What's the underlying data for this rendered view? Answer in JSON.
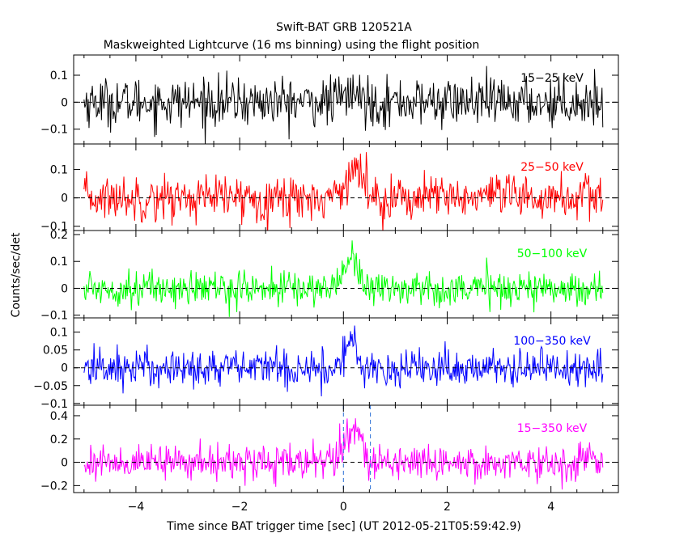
{
  "chart_data": {
    "type": "line",
    "title": "Swift-BAT GRB 120521A",
    "subtitle": "Maskweighted Lightcurve (16 ms binning) using the flight position",
    "xlabel": "Time since BAT trigger time [sec] (UT 2012-05-21T05:59:42.9)",
    "ylabel": "Counts/sec/det",
    "xlim": [
      -5.2,
      5.3
    ],
    "x_ticks": [
      -4,
      -2,
      0,
      2,
      4
    ],
    "x_tick_labels": [
      "−4",
      "−2",
      "0",
      "2",
      "4"
    ],
    "bin_width_sec": 0.016,
    "data_range_sec": [
      -5.0,
      5.0
    ],
    "vertical_markers_sec": [
      0.0,
      0.52
    ],
    "panels": [
      {
        "band": "15−25 keV",
        "color": "#000000",
        "ylim": [
          -0.155,
          0.175
        ],
        "y_ticks": [
          -0.1,
          0,
          0.1
        ],
        "y_tick_labels": [
          "−0.1",
          "0",
          "0.1"
        ],
        "noise_sigma": 0.045,
        "pulse_peak": 0.03,
        "pulse_center_sec": 0.15,
        "pulse_width_sec": 0.25
      },
      {
        "band": "25−50 keV",
        "color": "#ff0000",
        "ylim": [
          -0.115,
          0.19
        ],
        "y_ticks": [
          -0.1,
          0,
          0.1
        ],
        "y_tick_labels": [
          "−0.1",
          "0",
          "0.1"
        ],
        "noise_sigma": 0.04,
        "pulse_peak": 0.1,
        "pulse_center_sec": 0.2,
        "pulse_width_sec": 0.25
      },
      {
        "band": "50−100 keV",
        "color": "#00ff00",
        "ylim": [
          -0.11,
          0.215
        ],
        "y_ticks": [
          -0.1,
          0,
          0.1,
          0.2
        ],
        "y_tick_labels": [
          "−0.1",
          "0",
          "0.1",
          "0.2"
        ],
        "noise_sigma": 0.033,
        "pulse_peak": 0.12,
        "pulse_center_sec": 0.15,
        "pulse_width_sec": 0.2
      },
      {
        "band": "100−350 keV",
        "color": "#0000ff",
        "ylim": [
          -0.105,
          0.14
        ],
        "y_ticks": [
          -0.1,
          -0.05,
          0,
          0.05,
          0.1
        ],
        "y_tick_labels": [
          "−0.1",
          "−0.05",
          "0",
          "0.05",
          "0.1"
        ],
        "noise_sigma": 0.028,
        "pulse_peak": 0.065,
        "pulse_center_sec": 0.15,
        "pulse_width_sec": 0.18
      },
      {
        "band": "15−350 keV",
        "color": "#ff00ff",
        "ylim": [
          -0.26,
          0.49
        ],
        "y_ticks": [
          -0.2,
          0,
          0.2,
          0.4
        ],
        "y_tick_labels": [
          "−0.2",
          "0",
          "0.2",
          "0.4"
        ],
        "noise_sigma": 0.075,
        "pulse_peak": 0.3,
        "pulse_center_sec": 0.18,
        "pulse_width_sec": 0.22
      }
    ]
  }
}
